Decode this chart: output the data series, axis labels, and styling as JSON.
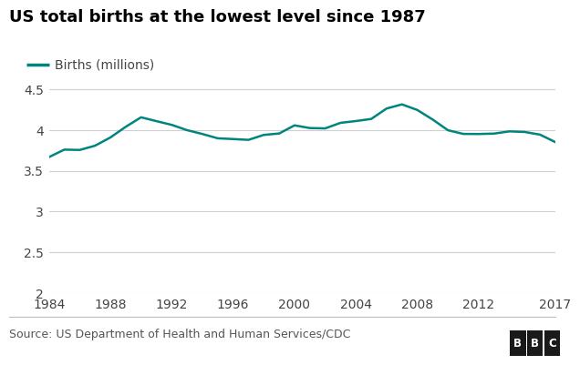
{
  "title": "US total births at the lowest level since 1987",
  "legend_label": "Births (millions)",
  "source_text": "Source: US Department of Health and Human Services/CDC",
  "bbc_text": "BBC",
  "line_color": "#00857e",
  "line_width": 1.8,
  "years": [
    1984,
    1985,
    1986,
    1987,
    1988,
    1989,
    1990,
    1991,
    1992,
    1993,
    1994,
    1995,
    1996,
    1997,
    1998,
    1999,
    2000,
    2001,
    2002,
    2003,
    2004,
    2005,
    2006,
    2007,
    2008,
    2009,
    2010,
    2011,
    2012,
    2013,
    2014,
    2015,
    2016,
    2017
  ],
  "values": [
    3.669,
    3.761,
    3.757,
    3.809,
    3.91,
    4.041,
    4.158,
    4.111,
    4.065,
    4.0,
    3.953,
    3.9,
    3.891,
    3.881,
    3.942,
    3.959,
    4.059,
    4.026,
    4.022,
    4.09,
    4.112,
    4.138,
    4.266,
    4.317,
    4.248,
    4.131,
    3.999,
    3.954,
    3.953,
    3.958,
    3.985,
    3.978,
    3.945,
    3.853
  ],
  "xlim": [
    1984,
    2017
  ],
  "ylim": [
    2.0,
    4.65
  ],
  "yticks": [
    2.0,
    2.5,
    3.0,
    3.5,
    4.0,
    4.5
  ],
  "ytick_labels": [
    "2",
    "2.5",
    "3",
    "3.5",
    "4",
    "4.5"
  ],
  "xticks": [
    1984,
    1988,
    1992,
    1996,
    2000,
    2004,
    2008,
    2012,
    2017
  ],
  "title_fontsize": 13,
  "label_fontsize": 10,
  "tick_fontsize": 10,
  "source_fontsize": 9,
  "background_color": "#ffffff",
  "grid_color": "#d0d0d0",
  "title_color": "#000000",
  "tick_color": "#444444",
  "source_color": "#555555"
}
